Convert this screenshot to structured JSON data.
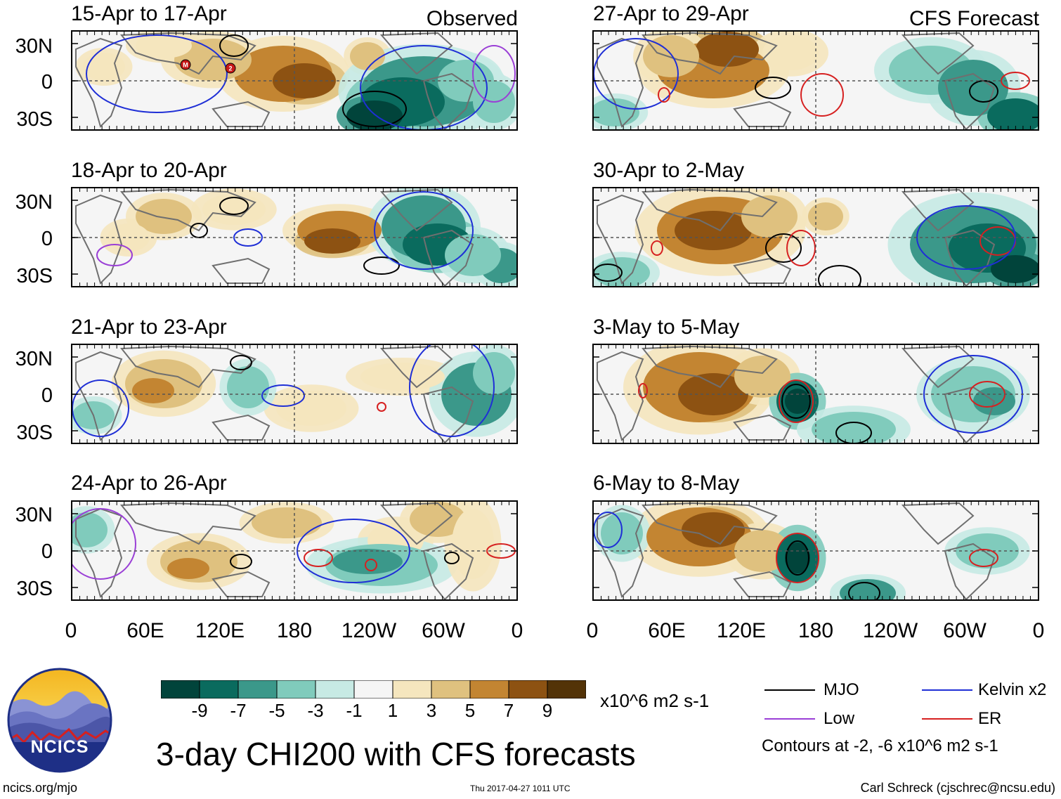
{
  "figure": {
    "main_title": "3-day CHI200 with CFS forecasts",
    "observed_label": "Observed",
    "forecast_label": "CFS Forecast",
    "units_label": "x10^6 m2 s-1",
    "contour_note": "Contours at -2, -6 x10^6 m2 s-1",
    "website": "ncics.org/mjo",
    "timestamp": "Thu 2017-04-27 1011 UTC",
    "author": "Carl Schreck (cjschrec@ncsu.edu)",
    "logo_text": "NCICS"
  },
  "lat_labels": [
    "30N",
    "0",
    "30S"
  ],
  "lon_labels": [
    "0",
    "60E",
    "120E",
    "180",
    "120W",
    "60W",
    "0"
  ],
  "panels_observed": [
    {
      "period": "15-Apr to 17-Apr"
    },
    {
      "period": "18-Apr to 20-Apr"
    },
    {
      "period": "21-Apr to 23-Apr"
    },
    {
      "period": "24-Apr to 26-Apr"
    }
  ],
  "panels_forecast": [
    {
      "period": "27-Apr to 29-Apr"
    },
    {
      "period": "30-Apr to 2-May"
    },
    {
      "period": "3-May to 5-May"
    },
    {
      "period": "6-May to 8-May"
    }
  ],
  "colorbar": {
    "colors": [
      "#01443b",
      "#0a6b5e",
      "#3b988a",
      "#80cbbc",
      "#c7eae4",
      "#f5f5f5",
      "#f5e6be",
      "#dfc17f",
      "#c38532",
      "#8d5212",
      "#533307"
    ],
    "ticks": [
      "-9",
      "-7",
      "-5",
      "-3",
      "-1",
      "1",
      "3",
      "5",
      "7",
      "9"
    ]
  },
  "legend": [
    {
      "label": "MJO",
      "color": "#000000"
    },
    {
      "label": "Kelvin x2",
      "color": "#1f2fd6"
    },
    {
      "label": "Low",
      "color": "#9a3fd6"
    },
    {
      "label": "ER",
      "color": "#d62020"
    }
  ],
  "storm_markers": [
    "M",
    "2"
  ]
}
